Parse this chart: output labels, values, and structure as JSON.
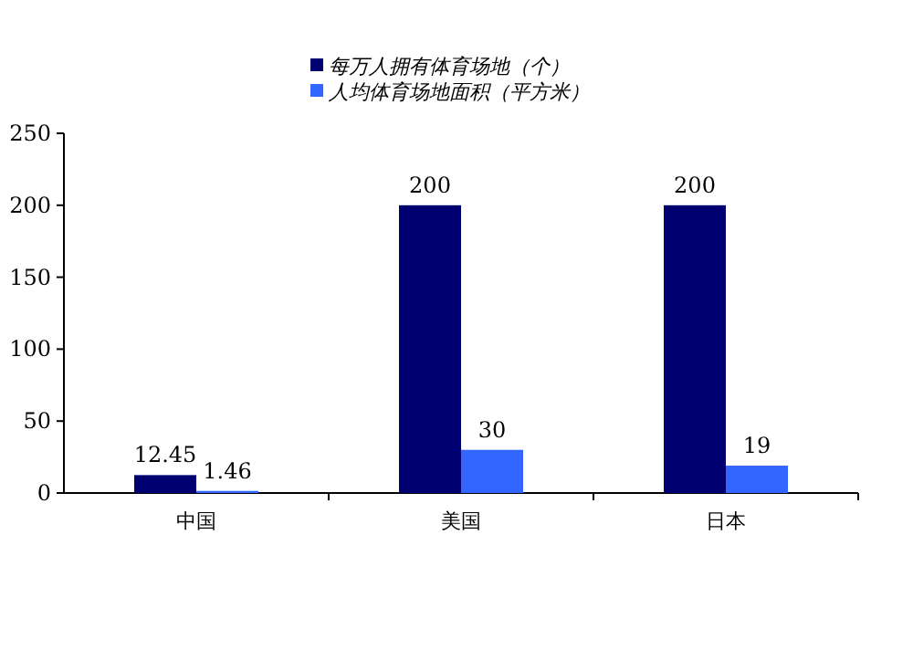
{
  "chart_data": {
    "type": "bar",
    "categories": [
      "中国",
      "美国",
      "日本"
    ],
    "series": [
      {
        "name": "每万人拥有体育场地（个）",
        "color": "#000070",
        "values": [
          12.45,
          200,
          200
        ]
      },
      {
        "name": "人均体育场地面积（平方米）",
        "color": "#3366ff",
        "values": [
          1.46,
          30,
          19
        ]
      }
    ],
    "ylim": [
      0,
      250
    ],
    "yticks": [
      0,
      50,
      100,
      150,
      200,
      250
    ],
    "data_labels": true,
    "legend": "top"
  }
}
